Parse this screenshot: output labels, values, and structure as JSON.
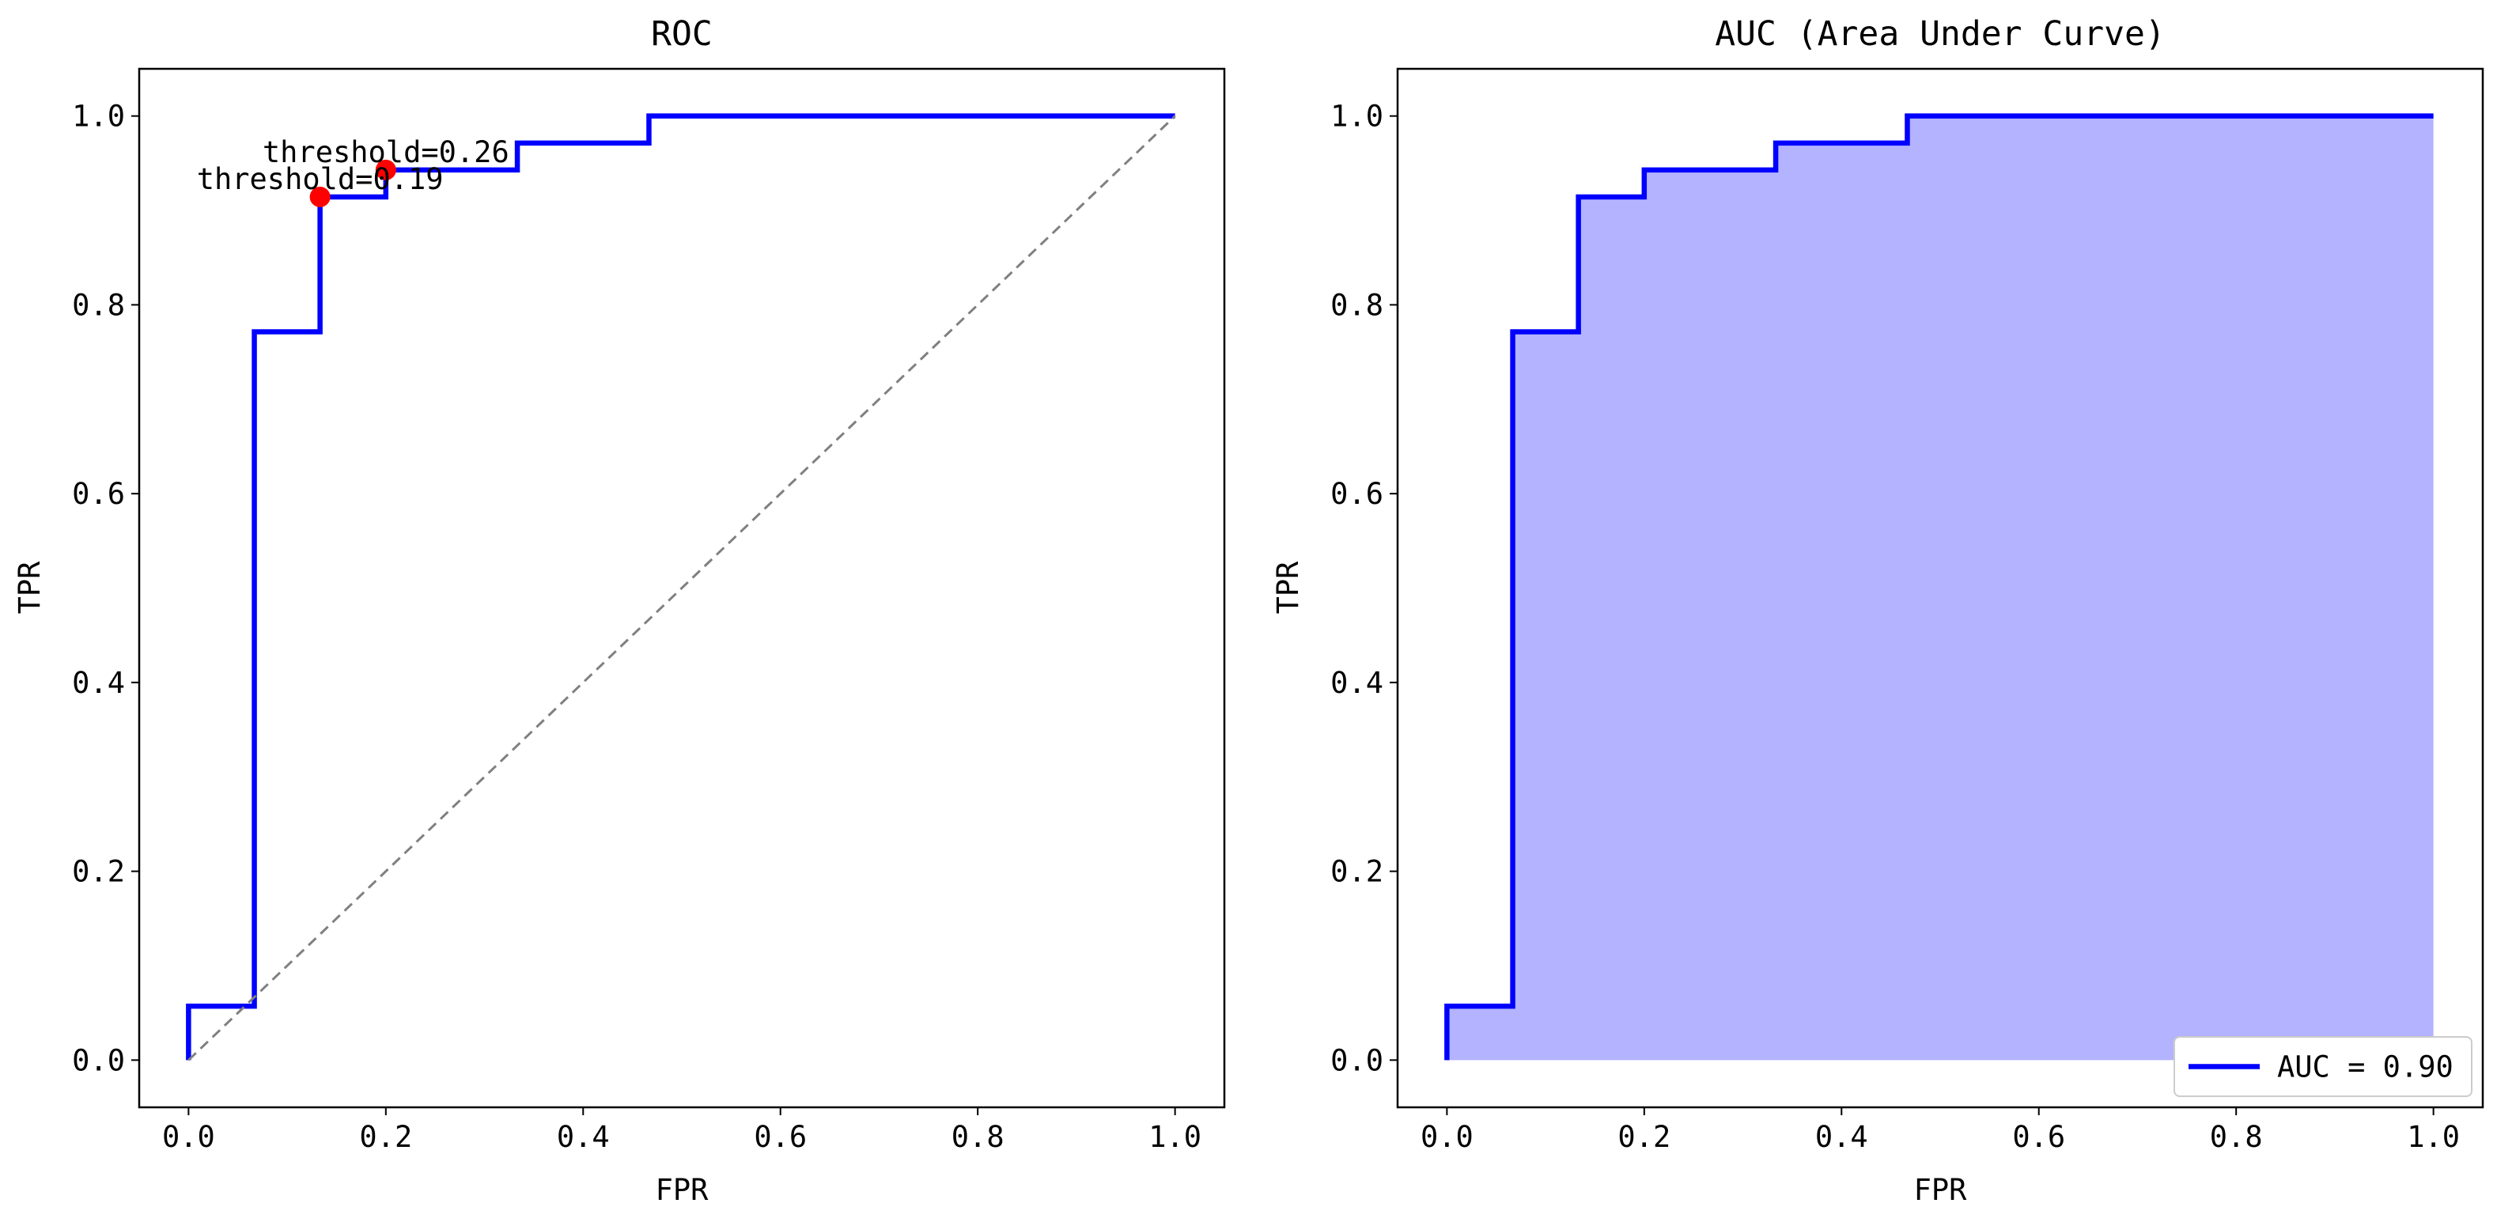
{
  "chart_data": [
    {
      "type": "line",
      "title": "ROC",
      "xlabel": "FPR",
      "ylabel": "TPR",
      "xlim": [
        -0.05,
        1.05
      ],
      "ylim": [
        -0.05,
        1.05
      ],
      "xticks": [
        "0.0",
        "0.2",
        "0.4",
        "0.6",
        "0.8",
        "1.0"
      ],
      "yticks": [
        "0.0",
        "0.2",
        "0.4",
        "0.6",
        "0.8",
        "1.0"
      ],
      "grid": false,
      "series": [
        {
          "style": "step",
          "color": "#0000ff",
          "x": [
            0.0,
            0.0,
            0.0667,
            0.0667,
            0.1333,
            0.1333,
            0.2,
            0.2,
            0.3333,
            0.3333,
            0.4667,
            0.4667,
            1.0
          ],
          "y": [
            0.0,
            0.0571,
            0.0571,
            0.7714,
            0.7714,
            0.9143,
            0.9143,
            0.9429,
            0.9429,
            0.9714,
            0.9714,
            1.0,
            1.0
          ]
        },
        {
          "style": "dashed",
          "color": "#808080",
          "x": [
            0.0,
            1.0
          ],
          "y": [
            0.0,
            1.0
          ]
        }
      ],
      "highlight_color": "#ff0000",
      "annotations": [
        {
          "text": "threshold=0.19",
          "x": 0.1333,
          "y": 0.9143
        },
        {
          "text": "threshold=0.26",
          "x": 0.2,
          "y": 0.9429
        }
      ]
    },
    {
      "type": "area",
      "title": "AUC (Area Under Curve)",
      "xlabel": "FPR",
      "ylabel": "TPR",
      "xlim": [
        -0.05,
        1.05
      ],
      "ylim": [
        -0.05,
        1.05
      ],
      "xticks": [
        "0.0",
        "0.2",
        "0.4",
        "0.6",
        "0.8",
        "1.0"
      ],
      "yticks": [
        "0.0",
        "0.2",
        "0.4",
        "0.6",
        "0.8",
        "1.0"
      ],
      "grid": false,
      "fill_color": "#b3b3ff",
      "series": [
        {
          "name": "AUC = 0.90",
          "style": "step",
          "color": "#0000ff",
          "x": [
            0.0,
            0.0,
            0.0667,
            0.0667,
            0.1333,
            0.1333,
            0.2,
            0.2,
            0.3333,
            0.3333,
            0.4667,
            0.4667,
            1.0
          ],
          "y": [
            0.0,
            0.0571,
            0.0571,
            0.7714,
            0.7714,
            0.9143,
            0.9143,
            0.9429,
            0.9429,
            0.9714,
            0.9714,
            1.0,
            1.0
          ]
        }
      ],
      "legend": {
        "position": "lower right",
        "label": "AUC = 0.90"
      }
    }
  ]
}
